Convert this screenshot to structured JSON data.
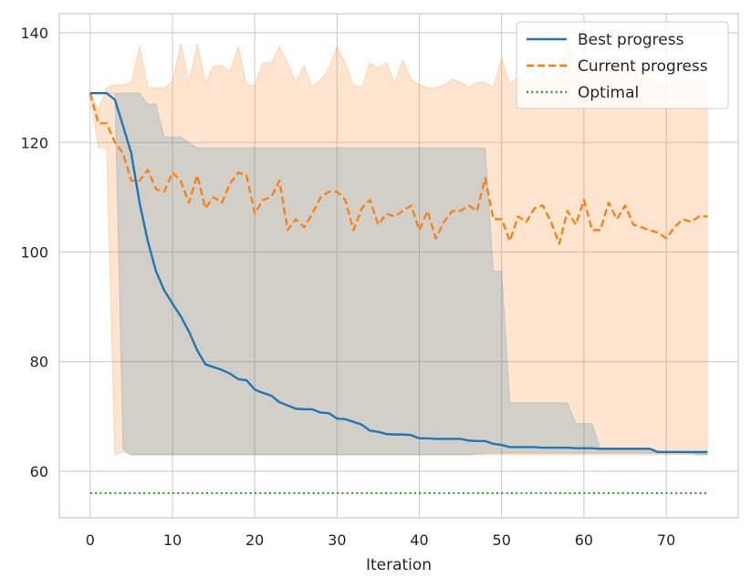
{
  "chart_data": {
    "type": "line",
    "title": "",
    "xlabel": "Iteration",
    "ylabel": "",
    "xlim": [
      -3.75,
      78.75
    ],
    "ylim": [
      51.5,
      143.5
    ],
    "xticks": [
      0,
      10,
      20,
      30,
      40,
      50,
      60,
      70
    ],
    "yticks": [
      60,
      80,
      100,
      120,
      140
    ],
    "grid": true,
    "legend_position": "top-right",
    "colors": {
      "best": "#1f77b4",
      "current": "#ff7f0e",
      "optimal": "#2ca02c",
      "current_band": "#ffdfc6",
      "best_band": "#d9cbbd",
      "grid": "#cccccc",
      "frame": "#cccccc"
    },
    "series": [
      {
        "name": "Best progress",
        "style": "solid",
        "x": [
          0,
          1,
          2,
          3,
          4,
          5,
          6,
          7,
          8,
          9,
          10,
          11,
          12,
          13,
          14,
          15,
          16,
          17,
          18,
          19,
          20,
          21,
          22,
          23,
          24,
          25,
          26,
          27,
          28,
          29,
          30,
          31,
          32,
          33,
          34,
          35,
          36,
          37,
          38,
          39,
          40,
          41,
          42,
          43,
          44,
          45,
          46,
          47,
          48,
          49,
          50,
          51,
          52,
          53,
          54,
          55,
          56,
          57,
          58,
          59,
          60,
          61,
          62,
          63,
          64,
          65,
          66,
          67,
          68,
          69,
          70,
          71,
          72,
          73,
          74,
          75
        ],
        "values": [
          129,
          129,
          129,
          127.8,
          123,
          118,
          109,
          102,
          96.5,
          93,
          90.6,
          88.3,
          85.5,
          82.1,
          79.5,
          79,
          78.5,
          77.8,
          76.8,
          76.6,
          74.9,
          74.3,
          73.8,
          72.6,
          72,
          71.4,
          71.3,
          71.3,
          70.7,
          70.6,
          69.6,
          69.5,
          69,
          68.5,
          67.4,
          67.2,
          66.8,
          66.7,
          66.7,
          66.6,
          66,
          66,
          65.9,
          65.9,
          65.9,
          65.9,
          65.6,
          65.5,
          65.5,
          65,
          64.8,
          64.4,
          64.4,
          64.4,
          64.4,
          64.3,
          64.3,
          64.3,
          64.3,
          64.2,
          64.2,
          64.2,
          64.1,
          64.1,
          64.1,
          64.1,
          64.1,
          64.1,
          64.1,
          63.5,
          63.5,
          63.5,
          63.5,
          63.5,
          63.5,
          63.5
        ],
        "band_upper": [
          129,
          129,
          129,
          129,
          129,
          129,
          129,
          127,
          127,
          121,
          121,
          121,
          120,
          119,
          119,
          119,
          119,
          119,
          119,
          119,
          119,
          119,
          119,
          119,
          119,
          119,
          119,
          119,
          119,
          119,
          119,
          119,
          119,
          119,
          119,
          119,
          119,
          119,
          119,
          119,
          119,
          119,
          119,
          119,
          119,
          119,
          119,
          119,
          119,
          96.5,
          96.5,
          72.5,
          72.5,
          72.5,
          72.5,
          72.5,
          72.5,
          72.5,
          72.5,
          68.7,
          68.7,
          68.7,
          64.1,
          64.1,
          64.1,
          64.1,
          64.1,
          64.1,
          64.1,
          63.5,
          63.5,
          63.5,
          63.5,
          63.5,
          63.5,
          63.5
        ],
        "band_lower": [
          129,
          129,
          129,
          129,
          64,
          63,
          63,
          63,
          63,
          63,
          63,
          63,
          63,
          63,
          63,
          63,
          63,
          63,
          63,
          63,
          63,
          63,
          63,
          63,
          63,
          63,
          63,
          63,
          63,
          63,
          63,
          63,
          63,
          63,
          63,
          63,
          63,
          63,
          63,
          63,
          63,
          63,
          63,
          63,
          63,
          63,
          63,
          63.2,
          63.3,
          63.3,
          63.3,
          63.3,
          63.3,
          63.3,
          63.3,
          63.3,
          63.3,
          63.3,
          63.3,
          63.3,
          63.3,
          63.3,
          63.3,
          63.3,
          63.3,
          63.3,
          63.3,
          63.3,
          63.3,
          63.3,
          63.3,
          63.3,
          63.3,
          63.3,
          63,
          63
        ]
      },
      {
        "name": "Current progress",
        "style": "dashed",
        "x": [
          0,
          1,
          2,
          3,
          4,
          5,
          6,
          7,
          8,
          9,
          10,
          11,
          12,
          13,
          14,
          15,
          16,
          17,
          18,
          19,
          20,
          21,
          22,
          23,
          24,
          25,
          26,
          27,
          28,
          29,
          30,
          31,
          32,
          33,
          34,
          35,
          36,
          37,
          38,
          39,
          40,
          41,
          42,
          43,
          44,
          45,
          46,
          47,
          48,
          49,
          50,
          51,
          52,
          53,
          54,
          55,
          56,
          57,
          58,
          59,
          60,
          61,
          62,
          63,
          64,
          65,
          66,
          67,
          68,
          69,
          70,
          71,
          72,
          73,
          74,
          75
        ],
        "values": [
          129,
          123.5,
          123.5,
          120,
          118,
          113,
          113,
          115,
          111.5,
          111,
          114.5,
          113,
          109,
          114,
          108,
          110,
          109,
          112.5,
          114.5,
          114,
          107,
          109.5,
          110,
          113,
          104,
          106,
          104.5,
          107,
          110,
          111,
          111,
          109.5,
          104,
          108,
          109.5,
          105,
          107,
          106.5,
          107.5,
          108.5,
          104,
          107.5,
          102.5,
          105.5,
          107.5,
          107.5,
          108.5,
          107.5,
          113.5,
          106,
          106,
          102,
          106.5,
          105.5,
          108,
          108.5,
          105.5,
          101.5,
          107.5,
          105,
          109.5,
          104,
          104,
          109,
          106,
          108.5,
          105,
          104.5,
          104,
          103.5,
          102.5,
          104.5,
          106,
          105.5,
          106.5,
          106.5
        ],
        "band_upper": [
          129,
          126,
          130,
          130.5,
          130.5,
          131,
          137.5,
          130,
          130,
          130,
          131,
          138,
          131,
          138,
          131,
          134,
          134,
          133,
          137.5,
          130.5,
          130.5,
          134.5,
          134.5,
          137.5,
          134.5,
          131,
          134,
          130,
          131.5,
          133.5,
          137.5,
          134.5,
          130.5,
          130,
          134.5,
          133.5,
          134.5,
          131,
          135,
          131.5,
          130.5,
          130,
          130,
          130.5,
          131.5,
          131,
          130,
          131,
          131,
          130,
          135.5,
          130.5,
          132,
          131,
          131.5,
          133,
          130.5,
          134,
          138,
          135.5,
          130,
          133,
          132,
          135,
          136,
          134,
          133,
          132,
          132,
          131,
          130.5,
          131,
          131.5,
          131,
          131.5,
          131
        ],
        "band_lower": [
          129,
          119,
          119,
          63,
          63.5,
          63,
          63,
          63,
          63,
          63,
          63,
          63,
          63,
          63,
          63,
          63,
          63,
          63,
          63,
          63,
          63,
          63,
          63,
          63,
          63,
          63,
          63,
          63,
          63,
          63,
          63,
          63,
          63,
          63,
          63,
          63,
          63,
          63,
          63,
          63,
          63,
          63,
          63,
          63,
          63,
          63,
          63,
          63,
          63,
          63,
          63,
          63,
          63,
          63,
          63,
          63,
          63,
          63,
          63,
          63,
          63,
          63,
          63,
          63,
          63,
          63,
          63,
          63,
          63,
          63,
          63,
          63,
          63,
          63,
          63,
          63
        ]
      },
      {
        "name": "Optimal",
        "style": "dotted",
        "x": [
          0,
          75
        ],
        "values": [
          56,
          56
        ]
      }
    ]
  }
}
